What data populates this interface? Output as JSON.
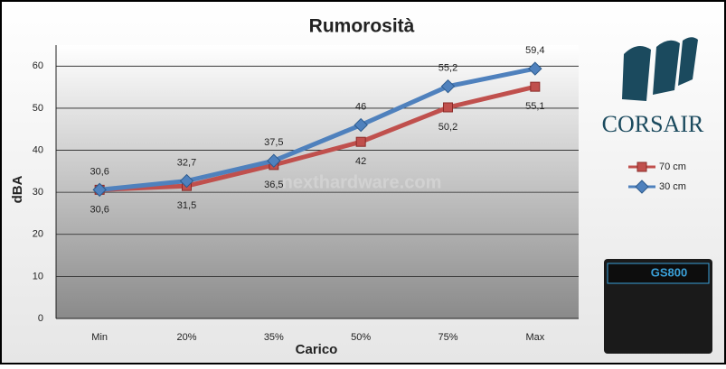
{
  "chart_data": {
    "type": "line",
    "title": "Rumorosità",
    "x_label": "Carico",
    "y_label": "dBA",
    "categories": [
      "Min",
      "20%",
      "35%",
      "50%",
      "75%",
      "Max"
    ],
    "series": [
      {
        "name": "70 cm",
        "color": "#c0504d",
        "marker": "square",
        "values": [
          30.6,
          31.5,
          36.5,
          42,
          50.2,
          55.1
        ],
        "value_labels": [
          "30,6",
          "31,5",
          "36,5",
          "42",
          "50,2",
          "55,1"
        ]
      },
      {
        "name": "30 cm",
        "color": "#4f81bd",
        "marker": "diamond",
        "values": [
          30.6,
          32.7,
          37.5,
          46,
          55.2,
          59.4
        ],
        "value_labels": [
          "30,6",
          "32,7",
          "37,5",
          "46",
          "55,2",
          "59,4"
        ]
      }
    ],
    "ylim": [
      0,
      65
    ],
    "yticks": [
      0,
      10,
      20,
      30,
      40,
      50,
      60
    ],
    "grid": true,
    "legend": "right",
    "watermark": "nexthardware.com",
    "brand": "CORSAIR",
    "product": "GS800"
  }
}
